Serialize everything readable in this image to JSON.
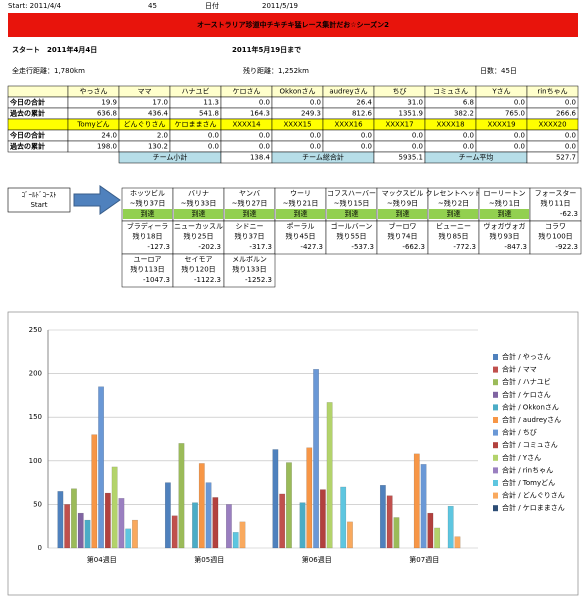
{
  "header": {
    "start_label": "Start: 2011/4/4",
    "days": "45",
    "date_label": "日付",
    "date": "2011/5/19"
  },
  "title": "オーストラリア珍道中チキチキ猛レース集計だお☆シーズン2",
  "start_line": "スタート　2011年4月4日",
  "end_line": "2011年5月19日まで",
  "total_distance": "全走行距離：1,780km",
  "remaining": "残り距離：1,252km",
  "days_count": "日数：45日",
  "table": {
    "groups": [
      {
        "members": [
          "やっさん",
          "ママ",
          "ハナユビ",
          "ケロさん",
          "Okkonさん",
          "audreyさん",
          "ちび",
          "コミュさん",
          "Yさん",
          "rinちゃん"
        ],
        "rows": [
          {
            "label": "今日の合計",
            "values": [
              "19.9",
              "17.0",
              "11.3",
              "0.0",
              "0.0",
              "26.4",
              "31.0",
              "6.8",
              "0.0",
              "0.0"
            ]
          },
          {
            "label": "過去の累計",
            "values": [
              "636.8",
              "436.4",
              "541.8",
              "164.3",
              "249.3",
              "812.6",
              "1351.9",
              "382.2",
              "765.0",
              "266.6"
            ]
          }
        ]
      },
      {
        "members": [
          "Tomyどん",
          "どんぐりさん",
          "ケロままさん",
          "XXXX14",
          "XXXX15",
          "XXXX16",
          "XXXX17",
          "XXXX18",
          "XXXX19",
          "XXXX20"
        ],
        "rows": [
          {
            "label": "今日の合計",
            "values": [
              "24.0",
              "2.0",
              "0.0",
              "0.0",
              "0.0",
              "0.0",
              "0.0",
              "0.0",
              "0.0",
              "0.0"
            ]
          },
          {
            "label": "過去の累計",
            "values": [
              "198.0",
              "130.2",
              "0.0",
              "0.0",
              "0.0",
              "0.0",
              "0.0",
              "0.0",
              "0.0",
              "0.0"
            ]
          }
        ]
      }
    ],
    "footer": [
      {
        "label": "チーム小計",
        "value": "138.4"
      },
      {
        "label": "チーム総合計",
        "value": "5935.1"
      },
      {
        "label": "チーム平均",
        "value": "527.7"
      }
    ]
  },
  "route": {
    "start": [
      "ｺﾞｰﾙﾄﾞｺｰｽﾄ",
      "Start"
    ],
    "stops": [
      {
        "name": "ホッツビル",
        "days": "~残り37日",
        "result": "到達",
        "reached": true
      },
      {
        "name": "バリナ",
        "days": "~残り33日",
        "result": "到達",
        "reached": true
      },
      {
        "name": "ヤンバ",
        "days": "~残り27日",
        "result": "到達",
        "reached": true
      },
      {
        "name": "ウーリ",
        "days": "~残り21日",
        "result": "到達",
        "reached": true
      },
      {
        "name": "コフスハーバー",
        "days": "~残り15日",
        "result": "到達",
        "reached": true
      },
      {
        "name": "マックスビル",
        "days": "~残り9日",
        "result": "到達",
        "reached": true
      },
      {
        "name": "クレセントヘッド",
        "days": "~残り2日",
        "result": "到達",
        "reached": true
      },
      {
        "name": "ローリートン",
        "days": "~残り1日",
        "result": "到達",
        "reached": true
      },
      {
        "name": "フォースター",
        "days": "残り11日",
        "result": "-62.3",
        "reached": false
      },
      {
        "name": "ブラディーラ",
        "days": "残り18日",
        "result": "-127.3",
        "reached": false
      },
      {
        "name": "ニューカッスル",
        "days": "残り25日",
        "result": "-202.3",
        "reached": false
      },
      {
        "name": "シドニー",
        "days": "残り37日",
        "result": "-317.3",
        "reached": false
      },
      {
        "name": "ポーラル",
        "days": "残り45日",
        "result": "-427.3",
        "reached": false
      },
      {
        "name": "ゴールバーン",
        "days": "残り55日",
        "result": "-537.3",
        "reached": false
      },
      {
        "name": "ブーロワ",
        "days": "残り74日",
        "result": "-662.3",
        "reached": false
      },
      {
        "name": "ビューニー",
        "days": "残り85日",
        "result": "-772.3",
        "reached": false
      },
      {
        "name": "ヴォガヴォガ",
        "days": "残り93日",
        "result": "-847.3",
        "reached": false
      },
      {
        "name": "コラワ",
        "days": "残り100日",
        "result": "-922.3",
        "reached": false
      },
      {
        "name": "ユーロア",
        "days": "残り113日",
        "result": "-1047.3",
        "reached": false
      },
      {
        "name": "セイモア",
        "days": "残り120日",
        "result": "-1122.3",
        "reached": false
      },
      {
        "name": "メルボルン",
        "days": "残り133日",
        "result": "-1252.3",
        "reached": false
      }
    ]
  },
  "chart_data": {
    "type": "bar",
    "categories": [
      "第04週目",
      "第05週目",
      "第06週目",
      "第07週目"
    ],
    "ylim": [
      0,
      250
    ],
    "yticks": [
      0,
      50,
      100,
      150,
      200,
      250
    ],
    "grid": true,
    "series": [
      {
        "name": "合計 / やっさん",
        "color": "#4f81bd",
        "values": [
          65,
          75,
          113,
          72
        ]
      },
      {
        "name": "合計 / ママ",
        "color": "#c0504d",
        "values": [
          50,
          37,
          62,
          60
        ]
      },
      {
        "name": "合計 / ハナユビ",
        "color": "#9bbb59",
        "values": [
          68,
          120,
          98,
          35
        ]
      },
      {
        "name": "合計 / ケロさん",
        "color": "#8064a2",
        "values": [
          40,
          0,
          0,
          0
        ]
      },
      {
        "name": "合計 / Okkonさん",
        "color": "#4bacc6",
        "values": [
          32,
          52,
          52,
          0
        ]
      },
      {
        "name": "合計 / audreyさん",
        "color": "#f79646",
        "values": [
          130,
          97,
          115,
          108
        ]
      },
      {
        "name": "合計 / ちび",
        "color": "#6a98d6",
        "values": [
          185,
          75,
          205,
          96
        ]
      },
      {
        "name": "合計 / コミュさん",
        "color": "#b2413e",
        "values": [
          63,
          58,
          67,
          40
        ]
      },
      {
        "name": "合計 / Yさん",
        "color": "#b3d36b",
        "values": [
          93,
          0,
          167,
          23
        ]
      },
      {
        "name": "合計 / rinちゃん",
        "color": "#9a7fc0",
        "values": [
          57,
          50,
          0,
          0
        ]
      },
      {
        "name": "合計 / Tomyどん",
        "color": "#5ec6e0",
        "values": [
          22,
          18,
          70,
          48
        ]
      },
      {
        "name": "合計 / どんぐりさん",
        "color": "#f9a95e",
        "values": [
          32,
          30,
          30,
          13
        ]
      },
      {
        "name": "合計 / ケロままさん",
        "color": "#2c4d75",
        "values": [
          0,
          0,
          0,
          0
        ]
      }
    ]
  }
}
